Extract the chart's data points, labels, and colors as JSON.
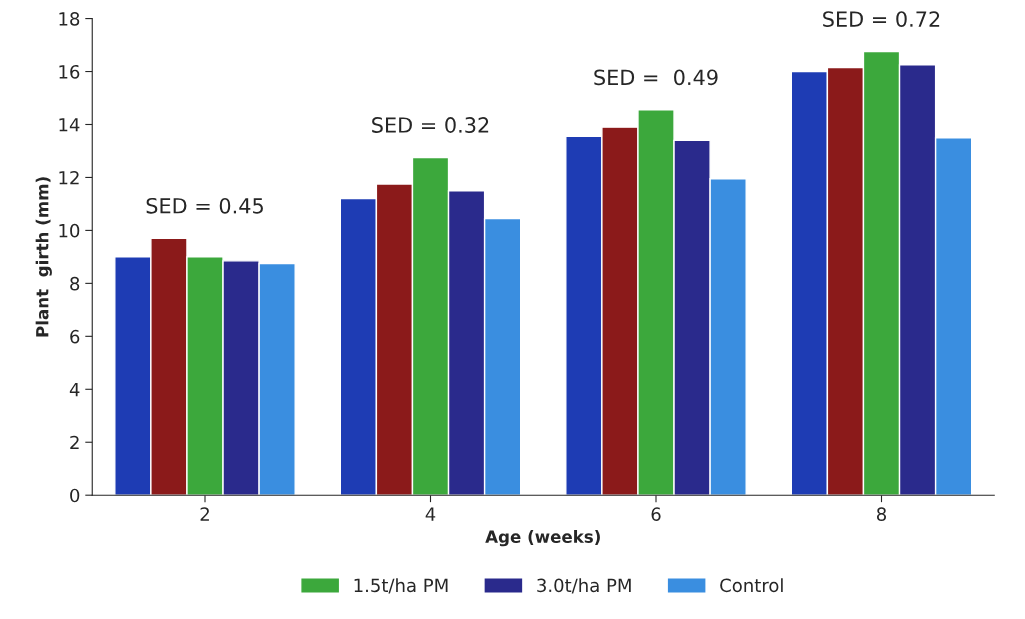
{
  "chart_data": {
    "type": "bar",
    "xlabel": "Age (weeks)",
    "ylabel": "Plant  girth (mm)",
    "categories": [
      "2",
      "4",
      "6",
      "8"
    ],
    "series": [
      {
        "color": "#1e3cb4",
        "values": [
          9.0,
          11.2,
          13.55,
          16.0
        ]
      },
      {
        "color": "#8b1a1a",
        "values": [
          9.7,
          11.75,
          13.9,
          16.15
        ]
      },
      {
        "name": "1.5t/ha PM",
        "color": "#3ca83c",
        "values": [
          9.0,
          12.75,
          14.55,
          16.75
        ]
      },
      {
        "name": "3.0t/ha PM",
        "color": "#2a2a8c",
        "values": [
          8.85,
          11.5,
          13.4,
          16.25
        ]
      },
      {
        "name": "Control",
        "color": "#3a8ee0",
        "values": [
          8.75,
          10.45,
          11.95,
          13.5
        ]
      }
    ],
    "ylim": [
      0,
      18
    ],
    "yticks": [
      0,
      2,
      4,
      6,
      8,
      10,
      12,
      14,
      16,
      18
    ],
    "grid": false,
    "legend": "bottom",
    "annotations": [
      "SED = 0.45",
      "SED = 0.32",
      "SED =  0.49",
      "SED = 0.72"
    ]
  }
}
